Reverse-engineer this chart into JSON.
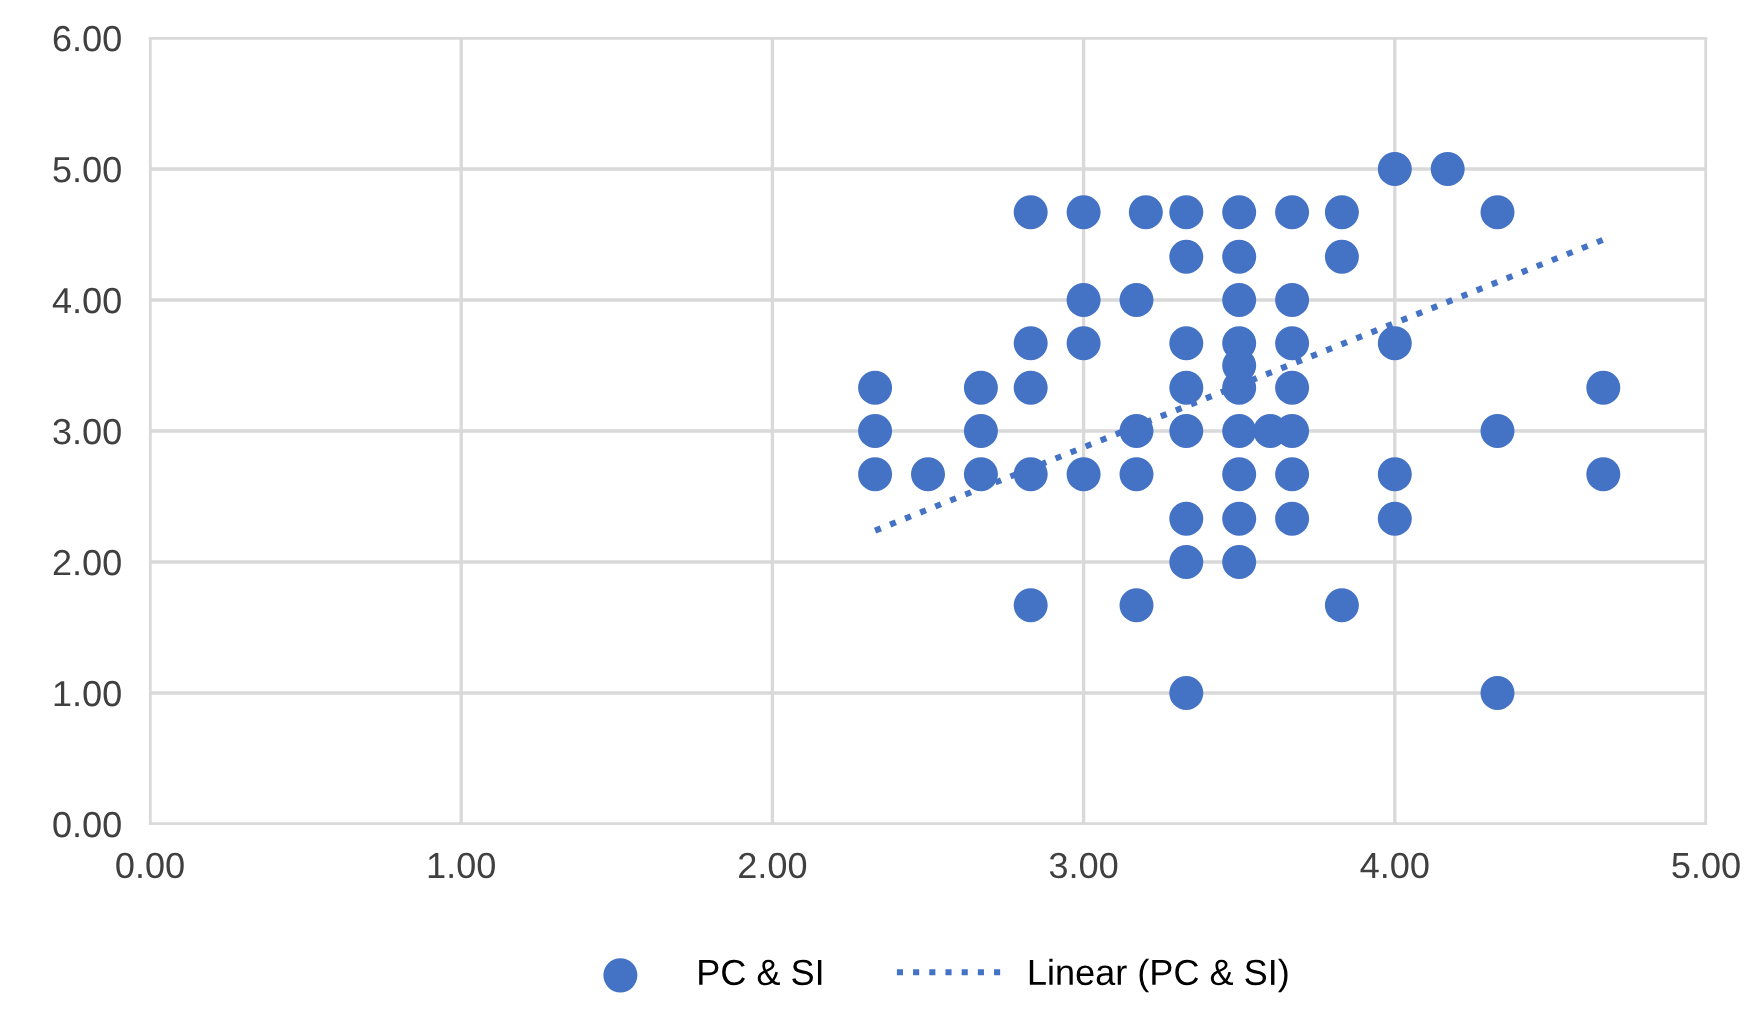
{
  "chart_data": {
    "type": "scatter",
    "xlim": [
      0,
      5
    ],
    "ylim": [
      0,
      6
    ],
    "xticks": [
      {
        "value": 0,
        "label": "0.00"
      },
      {
        "value": 1,
        "label": "1.00"
      },
      {
        "value": 2,
        "label": "2.00"
      },
      {
        "value": 3,
        "label": "3.00"
      },
      {
        "value": 4,
        "label": "4.00"
      },
      {
        "value": 5,
        "label": "5.00"
      }
    ],
    "yticks": [
      {
        "value": 0,
        "label": "0.00"
      },
      {
        "value": 1,
        "label": "1.00"
      },
      {
        "value": 2,
        "label": "2.00"
      },
      {
        "value": 3,
        "label": "3.00"
      },
      {
        "value": 4,
        "label": "4.00"
      },
      {
        "value": 5,
        "label": "5.00"
      },
      {
        "value": 6,
        "label": "6.00"
      }
    ],
    "grid": true,
    "legend": "bottom",
    "series": [
      {
        "name": "PC & SI",
        "marker": "circle",
        "color": "#4472c4",
        "x": [
          2.33,
          2.33,
          2.33,
          2.5,
          2.67,
          2.67,
          2.67,
          2.83,
          2.83,
          2.83,
          2.83,
          2.83,
          3.0,
          3.0,
          3.0,
          3.0,
          3.17,
          3.17,
          3.17,
          3.17,
          3.2,
          3.33,
          3.33,
          3.33,
          3.33,
          3.33,
          3.33,
          3.33,
          3.33,
          3.5,
          3.5,
          3.5,
          3.5,
          3.5,
          3.5,
          3.5,
          3.5,
          3.5,
          3.5,
          3.6,
          3.67,
          3.67,
          3.67,
          3.67,
          3.67,
          3.67,
          3.67,
          3.83,
          3.83,
          3.83,
          4.0,
          4.0,
          4.0,
          4.0,
          4.17,
          4.33,
          4.33,
          4.33,
          4.67,
          4.67
        ],
        "values": [
          3.33,
          3.0,
          2.67,
          2.67,
          3.33,
          3.0,
          2.67,
          4.67,
          3.67,
          3.33,
          2.67,
          1.67,
          4.67,
          4.0,
          3.67,
          2.67,
          4.0,
          3.0,
          2.67,
          1.67,
          4.67,
          4.67,
          4.33,
          3.67,
          3.33,
          3.0,
          2.33,
          2.0,
          1.0,
          4.67,
          4.33,
          4.0,
          3.67,
          3.5,
          3.33,
          3.0,
          2.67,
          2.33,
          2.0,
          3.0,
          4.67,
          4.0,
          3.67,
          3.33,
          3.0,
          2.67,
          2.33,
          4.67,
          4.33,
          1.67,
          5.0,
          3.67,
          2.67,
          2.33,
          5.0,
          4.67,
          3.0,
          1.0,
          3.33,
          2.67
        ]
      },
      {
        "name": "Linear (PC & SI)",
        "type": "line",
        "line_style": "dotted",
        "color": "#4472c4",
        "x": [
          2.33,
          4.67
        ],
        "values": [
          2.24,
          4.46
        ]
      }
    ]
  }
}
